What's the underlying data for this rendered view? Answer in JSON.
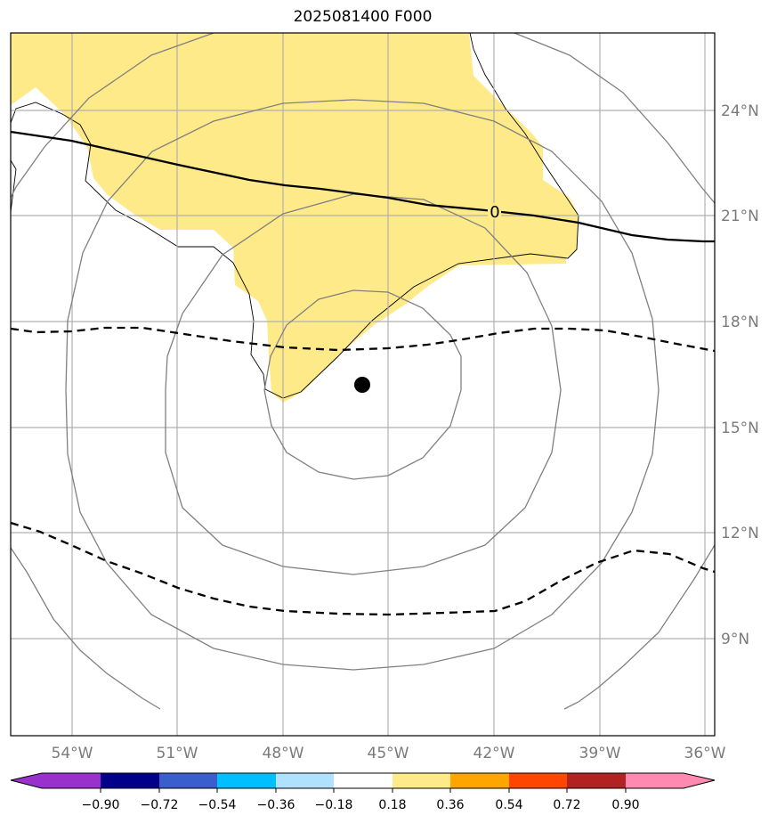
{
  "title": "2025081400 F000",
  "map": {
    "lon_range": [
      -56.3,
      -36.3
    ],
    "lat_range": [
      6.6,
      26.5
    ],
    "lon_ticks": [
      -54,
      -51,
      -48,
      -45,
      -42,
      -39,
      -36
    ],
    "lon_labels": [
      "54°W",
      "51°W",
      "48°W",
      "45°W",
      "42°W",
      "39°W",
      "36°W"
    ],
    "lat_ticks": [
      9,
      12,
      15,
      18,
      21,
      24
    ],
    "lat_labels": [
      "9°N",
      "12°N",
      "15°N",
      "18°N",
      "21°N",
      "24°N"
    ],
    "center_marker": {
      "lon": -45.8,
      "lat": 16.2
    },
    "range_rings": "concentric gray circles around center marker",
    "contour_label": "0",
    "shading_color": "#ffea8a"
  },
  "colorbar": {
    "colors": [
      "#9932cc",
      "#00008b",
      "#3a5fcd",
      "#00bfff",
      "#b0e2ff",
      "#ffffff",
      "#ffea8a",
      "#ffa500",
      "#ff4500",
      "#b22222",
      "#ff89b0"
    ],
    "labels": [
      "−0.90",
      "−0.72",
      "−0.54",
      "−0.36",
      "−0.18",
      "0.18",
      "0.36",
      "0.54",
      "0.72",
      "0.90"
    ]
  }
}
